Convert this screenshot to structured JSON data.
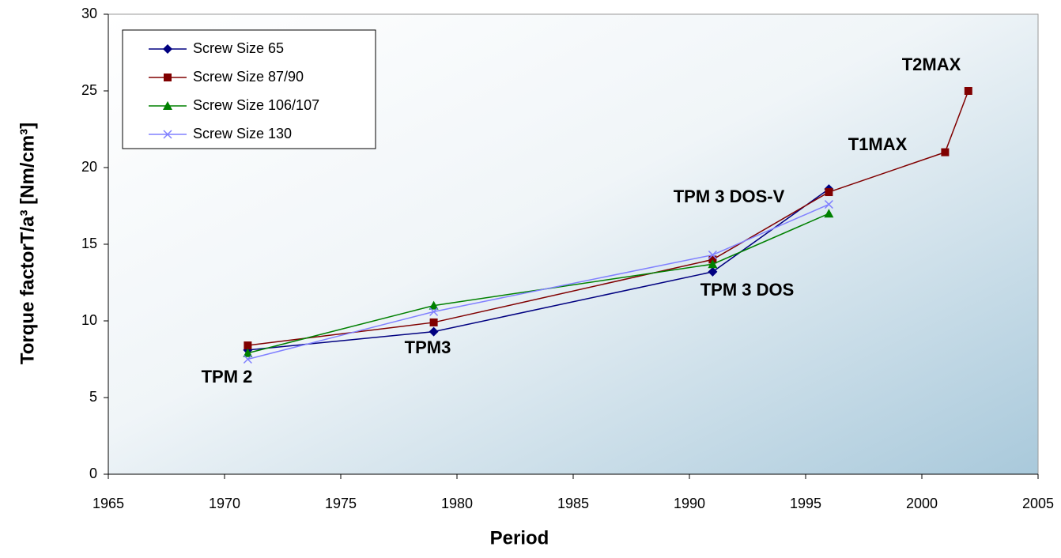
{
  "chart_data": {
    "type": "line",
    "x_label": "Period",
    "y_label": "Torque factorT/a³ [Nm/cm³]",
    "xlim": [
      1965,
      2005
    ],
    "xticks": [
      1965,
      1970,
      1975,
      1980,
      1985,
      1990,
      1995,
      2000,
      2005
    ],
    "ylim": [
      0,
      30
    ],
    "yticks": [
      0,
      5,
      10,
      15,
      20,
      25,
      30
    ],
    "grid": false,
    "legend_position": "upper-left",
    "series": [
      {
        "name": "Screw Size 65",
        "color": "#000080",
        "marker": "diamond",
        "x": [
          1971,
          1979,
          1991,
          1996
        ],
        "values": [
          8.1,
          9.3,
          13.2,
          18.6
        ]
      },
      {
        "name": "Screw Size 87/90",
        "color": "#800000",
        "marker": "square",
        "x": [
          1971,
          1979,
          1991,
          1996,
          2001,
          2002
        ],
        "values": [
          8.4,
          9.9,
          14.0,
          18.4,
          21.0,
          25.0
        ]
      },
      {
        "name": "Screw Size 106/107",
        "color": "#008000",
        "marker": "triangle",
        "x": [
          1971,
          1979,
          1991,
          1996
        ],
        "values": [
          7.9,
          11.0,
          13.7,
          17.0
        ]
      },
      {
        "name": "Screw Size 130",
        "color": "#8080ff",
        "marker": "x",
        "x": [
          1971,
          1979,
          1991,
          1996
        ],
        "values": [
          7.5,
          10.6,
          14.3,
          17.6
        ]
      }
    ],
    "annotations": [
      "TPM 2",
      "TPM3",
      "TPM 3 DOS",
      "TPM 3 DOS-V",
      "T1MAX",
      "T2MAX"
    ]
  }
}
